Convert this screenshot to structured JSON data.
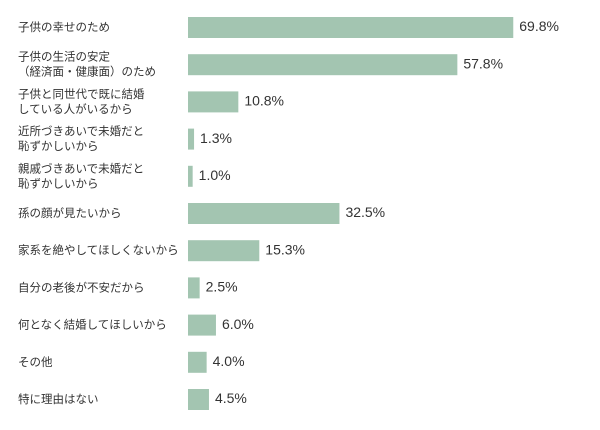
{
  "chart_data": {
    "type": "bar",
    "orientation": "horizontal",
    "title": "",
    "xlabel": "",
    "ylabel": "",
    "unit": "%",
    "xlim": [
      0,
      100
    ],
    "grid": false,
    "legend": "none",
    "bar_color": "#a3c5b1",
    "categories": [
      [
        "子供の幸せのため"
      ],
      [
        "子供の生活の安定",
        "（経済面・健康面）のため"
      ],
      [
        "子供と同世代で既に結婚",
        "している人がいるから"
      ],
      [
        "近所づきあいで未婚だと",
        "恥ずかしいから"
      ],
      [
        "親戚づきあいで未婚だと",
        "恥ずかしいから"
      ],
      [
        "孫の顔が見たいから"
      ],
      [
        "家系を絶やしてほしくないから"
      ],
      [
        "自分の老後が不安だから"
      ],
      [
        "何となく結婚してほしいから"
      ],
      [
        "その他"
      ],
      [
        "特に理由はない"
      ]
    ],
    "values": [
      69.8,
      57.8,
      10.8,
      1.3,
      1.0,
      32.5,
      15.3,
      2.5,
      6.0,
      4.0,
      4.5
    ],
    "value_labels": [
      "69.8%",
      "57.8%",
      "10.8%",
      "1.3%",
      "1.0%",
      "32.5%",
      "15.3%",
      "2.5%",
      "6.0%",
      "4.0%",
      "4.5%"
    ]
  }
}
